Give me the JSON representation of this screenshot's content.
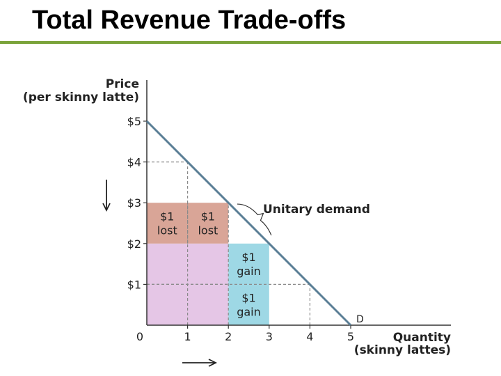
{
  "slide": {
    "title": "Total Revenue Trade-offs",
    "accent_color": "#7aa33a"
  },
  "chart_data": {
    "type": "line",
    "title": "",
    "ylabel_line1": "Price",
    "ylabel_line2": "(per skinny latte)",
    "xlabel_line1": "Quantity",
    "xlabel_line2": "(skinny lattes)",
    "xlim": [
      0,
      5.5
    ],
    "ylim": [
      0,
      5.5
    ],
    "x_ticks": [
      0,
      1,
      2,
      3,
      4,
      5
    ],
    "x_tick_labels": [
      "0",
      "1",
      "2",
      "3",
      "4",
      "5"
    ],
    "y_ticks": [
      1,
      2,
      3,
      4,
      5
    ],
    "y_tick_labels": [
      "$1",
      "$2",
      "$3",
      "$4",
      "$5"
    ],
    "series": [
      {
        "name": "D",
        "color": "#5b7f96",
        "points": [
          [
            0,
            5
          ],
          [
            1,
            4
          ],
          [
            2,
            3
          ],
          [
            3,
            2
          ],
          [
            4,
            1
          ],
          [
            5,
            0
          ]
        ]
      }
    ],
    "regions": [
      {
        "role": "base",
        "x": [
          0,
          2
        ],
        "y": [
          0,
          2
        ],
        "color": "#e5c6e6"
      },
      {
        "role": "lost",
        "x": [
          0,
          1
        ],
        "y": [
          2,
          3
        ],
        "color": "#d9a597",
        "line1": "$1",
        "line2": "lost"
      },
      {
        "role": "lost",
        "x": [
          1,
          2
        ],
        "y": [
          2,
          3
        ],
        "color": "#d9a597",
        "line1": "$1",
        "line2": "lost"
      },
      {
        "role": "gain",
        "x": [
          2,
          3
        ],
        "y": [
          1,
          2
        ],
        "color": "#9ed8e5",
        "line1": "$1",
        "line2": "gain"
      },
      {
        "role": "gain",
        "x": [
          2,
          3
        ],
        "y": [
          0,
          1
        ],
        "color": "#9ed8e5",
        "line1": "$1",
        "line2": "gain"
      }
    ],
    "guides": [
      {
        "x": [
          0,
          1
        ],
        "y": [
          4,
          4
        ]
      },
      {
        "x": [
          1,
          1
        ],
        "y": [
          0,
          4
        ]
      },
      {
        "x": [
          0,
          2
        ],
        "y": [
          1,
          1
        ]
      },
      {
        "x": [
          1,
          1
        ],
        "y": [
          2,
          3
        ]
      },
      {
        "x": [
          2,
          2
        ],
        "y": [
          0,
          3
        ]
      },
      {
        "x": [
          0,
          4
        ],
        "y": [
          1,
          1
        ]
      },
      {
        "x": [
          4,
          4
        ],
        "y": [
          0,
          1
        ]
      }
    ],
    "annotation": {
      "text": "Unitary demand",
      "brace_from": [
        2.15,
        2.9
      ],
      "brace_to": [
        2.95,
        2.1
      ]
    },
    "arrows": {
      "price_arrow": "down",
      "quantity_arrow": "right"
    }
  }
}
